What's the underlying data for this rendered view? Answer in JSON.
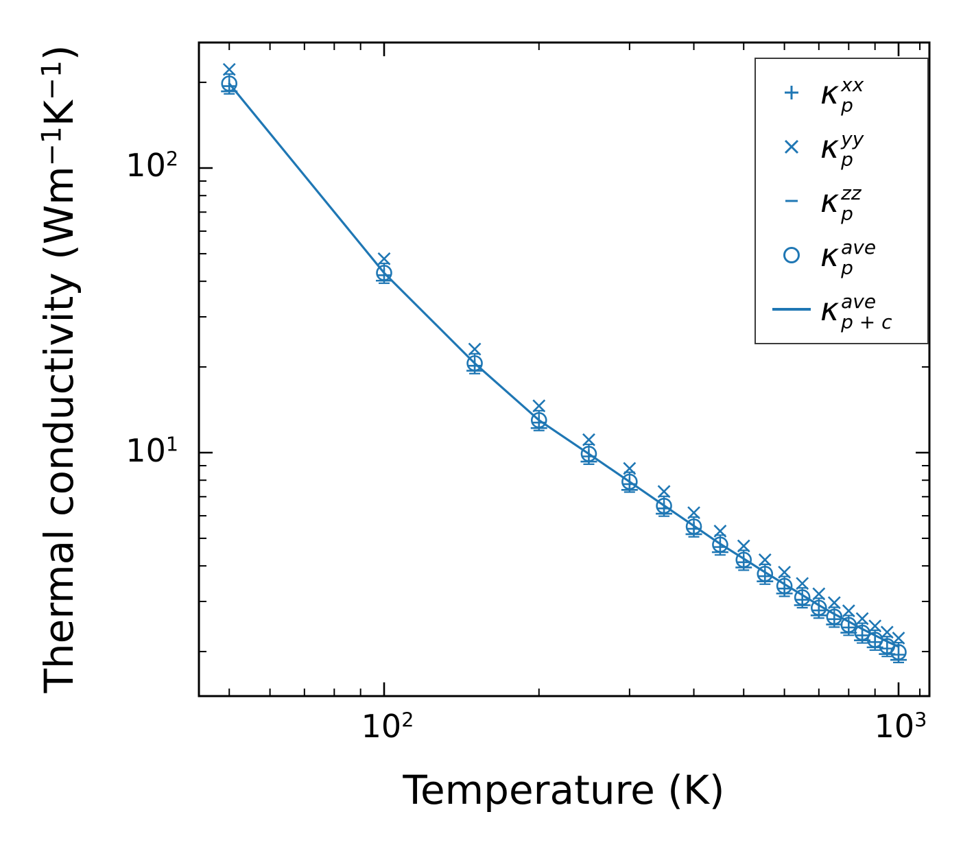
{
  "accent_color": "#1f77b4",
  "chart_data": {
    "type": "line",
    "title": "",
    "xlabel": "Temperature (K)",
    "ylabel": "Thermal conductivity (Wm⁻¹K⁻¹)",
    "x_scale": "log",
    "y_scale": "log",
    "xlim": [
      44,
      1150
    ],
    "ylim": [
      1.4,
      276
    ],
    "grid": false,
    "legend_position": "upper right",
    "color": "#1f77b4",
    "x": [
      50,
      100,
      150,
      200,
      250,
      300,
      350,
      400,
      450,
      500,
      550,
      600,
      650,
      700,
      750,
      800,
      850,
      900,
      950,
      1000
    ],
    "series": [
      {
        "name": "kappa_p_xx",
        "label": "κ_p^xx",
        "marker": "plus",
        "values": [
          194,
          42.0,
          20.2,
          12.75,
          9.7,
          7.75,
          6.37,
          5.4,
          4.66,
          4.12,
          3.68,
          3.33,
          3.04,
          2.79,
          2.6,
          2.43,
          2.28,
          2.16,
          2.05,
          1.95
        ]
      },
      {
        "name": "kappa_p_yy",
        "label": "κ_p^yy",
        "marker": "x",
        "values": [
          222,
          48.0,
          23.1,
          14.6,
          11.1,
          8.8,
          7.3,
          6.15,
          5.3,
          4.7,
          4.2,
          3.8,
          3.47,
          3.19,
          2.97,
          2.78,
          2.61,
          2.46,
          2.34,
          2.23
        ]
      },
      {
        "name": "kappa_p_zz",
        "label": "κ_p^zz",
        "marker": "hline",
        "values": [
          186,
          40.2,
          19.4,
          12.2,
          9.3,
          7.4,
          6.1,
          5.17,
          4.47,
          3.95,
          3.53,
          3.2,
          2.91,
          2.68,
          2.49,
          2.33,
          2.19,
          2.07,
          1.96,
          1.87
        ]
      },
      {
        "name": "kappa_p_ave",
        "label": "κ_p^ave",
        "marker": "circle",
        "error_fraction": 0.08,
        "values": [
          198,
          42.8,
          20.6,
          13.0,
          9.9,
          7.9,
          6.5,
          5.5,
          4.75,
          4.2,
          3.75,
          3.4,
          3.1,
          2.85,
          2.65,
          2.48,
          2.33,
          2.2,
          2.09,
          1.99
        ]
      },
      {
        "name": "kappa_p_plus_c_ave",
        "label": "κ_{p+c}^ave",
        "marker": "line",
        "values": [
          198,
          42.8,
          20.6,
          13.0,
          9.9,
          7.9,
          6.52,
          5.53,
          4.78,
          4.24,
          3.8,
          3.45,
          3.16,
          2.91,
          2.71,
          2.55,
          2.4,
          2.28,
          2.17,
          2.08
        ]
      }
    ],
    "axes": {
      "x_major_ticks": [
        100,
        1000
      ],
      "x_minor_ticks": [
        50,
        60,
        70,
        80,
        90,
        200,
        300,
        400,
        500,
        600,
        700,
        800,
        900,
        1100
      ],
      "y_major_ticks": [
        10,
        100
      ],
      "y_minor_ticks": [
        2,
        3,
        4,
        5,
        6,
        7,
        8,
        9,
        20,
        30,
        40,
        50,
        60,
        70,
        80,
        90,
        200
      ]
    }
  },
  "x_tick_labels": [
    {
      "base": "10",
      "exp": "2"
    },
    {
      "base": "10",
      "exp": "3"
    }
  ],
  "y_tick_labels": [
    {
      "base": "10",
      "exp": "2"
    },
    {
      "base": "10",
      "exp": "1"
    }
  ],
  "xlabel": "Temperature (K)",
  "ylabel_parts": {
    "pre": "Thermal conductivity (Wm",
    "sup1": "−1",
    "mid": "K",
    "sup2": "−1",
    "post": ")"
  },
  "legend": {
    "entries": [
      {
        "marker": "plus",
        "kappa": "κ",
        "sup": "xx",
        "sub": "p"
      },
      {
        "marker": "x",
        "kappa": "κ",
        "sup": "yy",
        "sub": "p"
      },
      {
        "marker": "hline",
        "kappa": "κ",
        "sup": "zz",
        "sub": "p"
      },
      {
        "marker": "circle",
        "kappa": "κ",
        "sup": "ave",
        "sub": "p"
      },
      {
        "marker": "line",
        "kappa": "κ",
        "sup": "ave",
        "sub": "p + c"
      }
    ]
  }
}
